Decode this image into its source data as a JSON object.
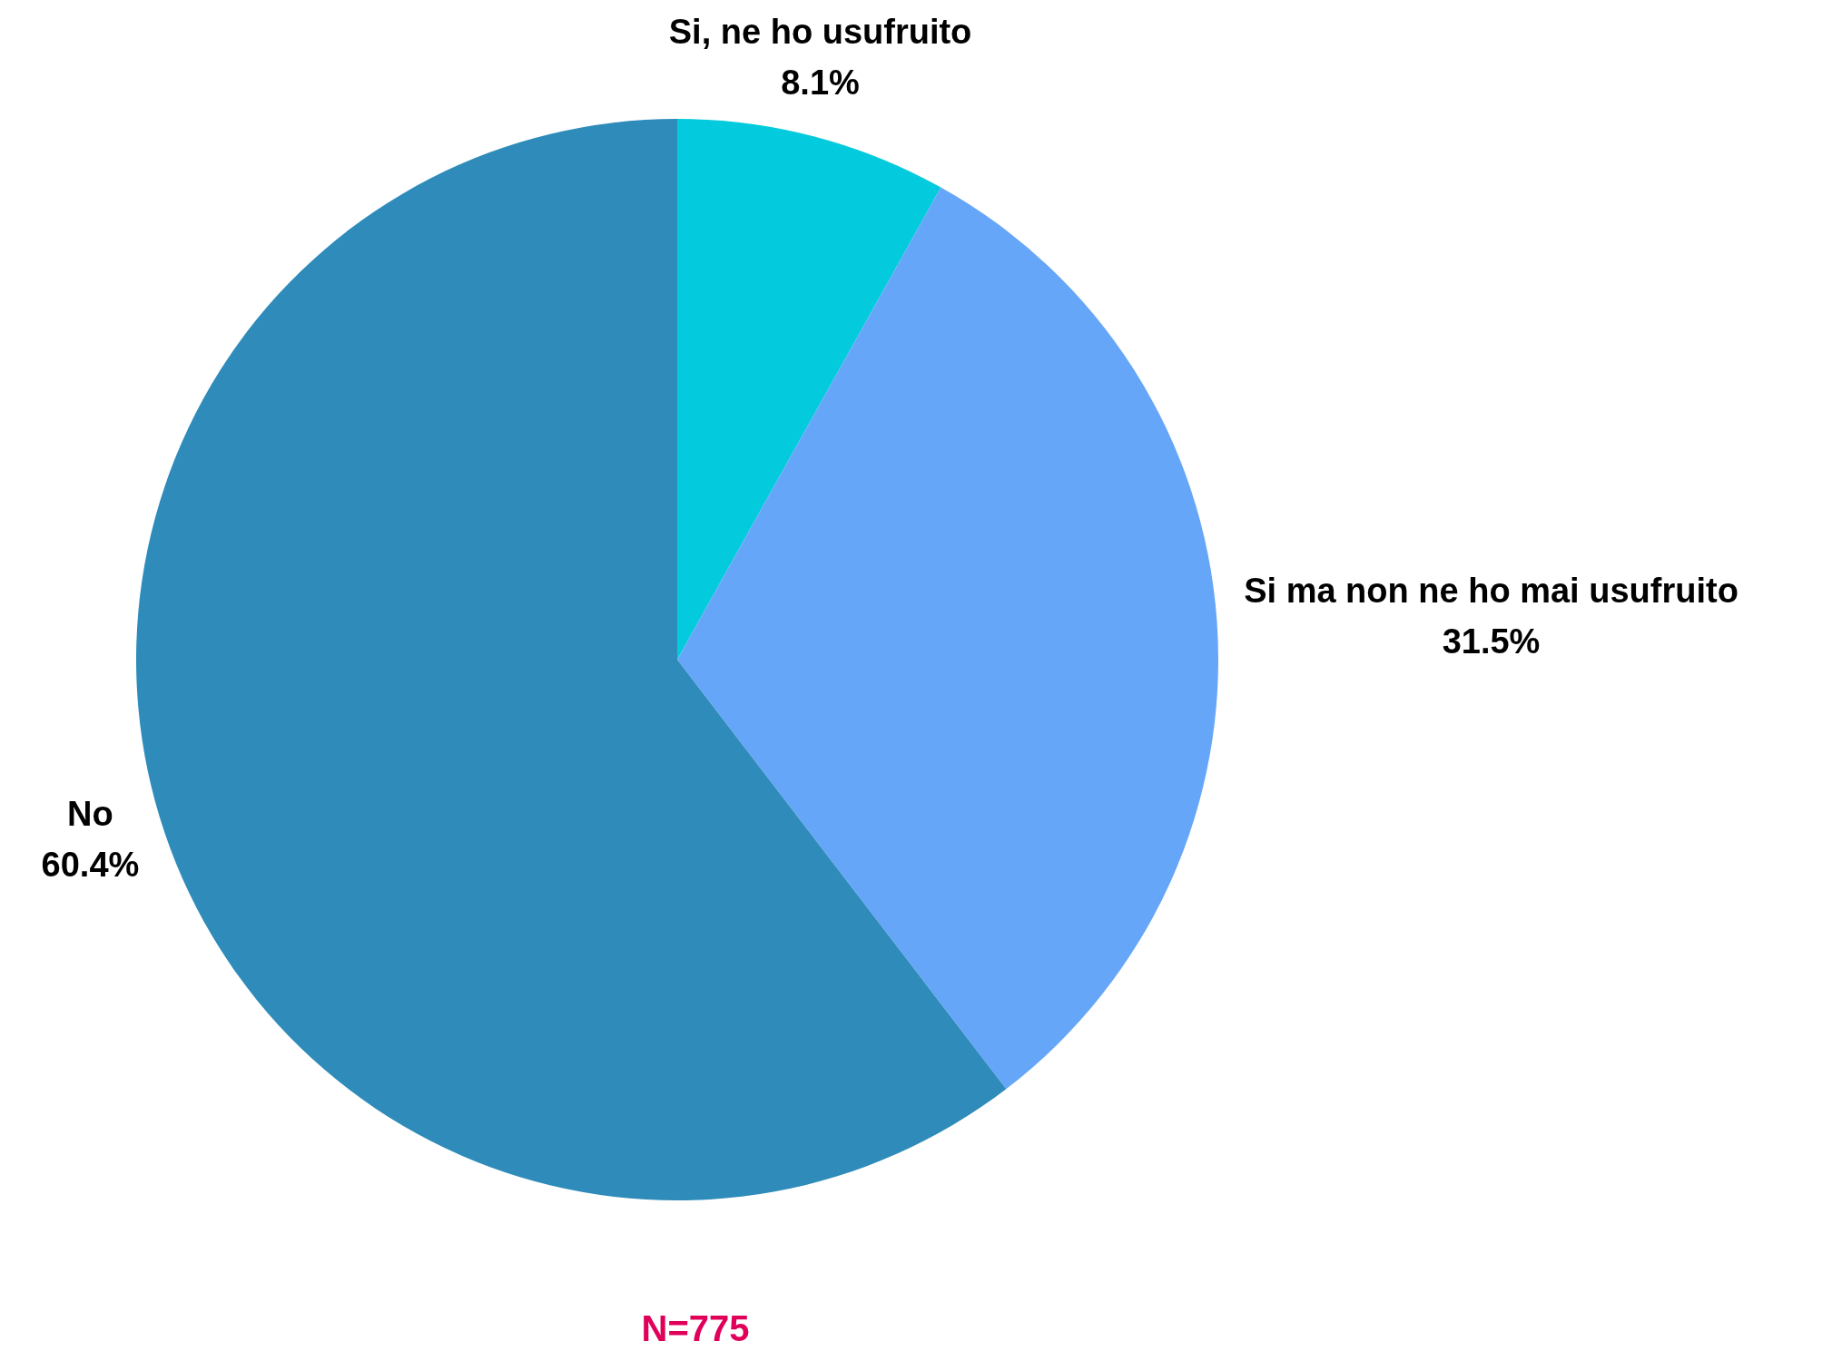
{
  "chart_data": {
    "type": "pie",
    "categories": [
      "Si, ne ho usufruito",
      "Si ma non ne ho mai usufruito",
      "No"
    ],
    "values": [
      8.1,
      31.5,
      60.4
    ],
    "colors": [
      "#03cadc",
      "#66a6f8",
      "#2e8bba"
    ],
    "value_labels": [
      "8.1%",
      "31.5%",
      "60.4%"
    ],
    "legend": false,
    "annotations": [
      "N=775"
    ]
  }
}
